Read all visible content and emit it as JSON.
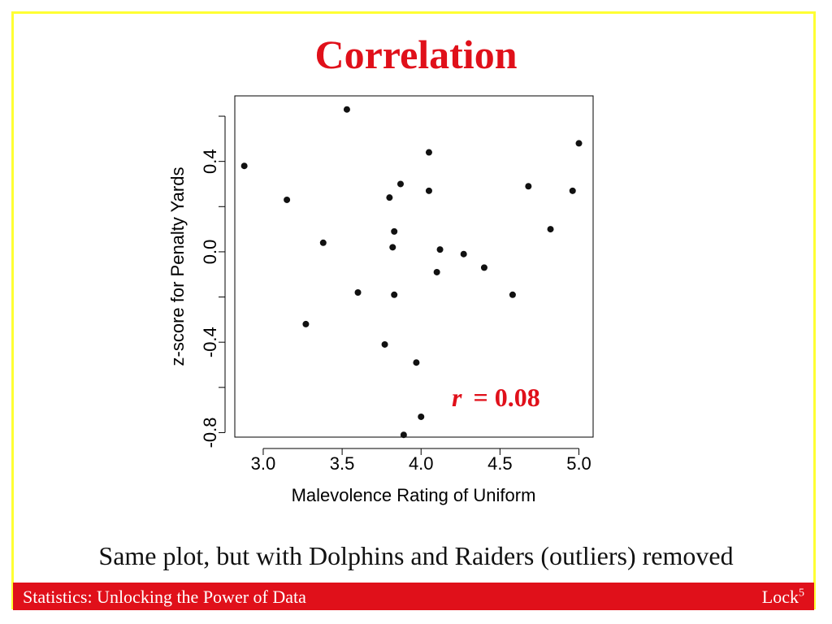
{
  "slide": {
    "title": "Correlation",
    "caption": "Same plot, but with Dolphins and Raiders (outliers) removed",
    "footer_left": "Statistics: Unlocking the Power of Data",
    "footer_right_base": "Lock",
    "footer_right_sup": "5"
  },
  "colors": {
    "title": "#e0101a",
    "footer_bg": "#e0101a",
    "frame": "#ffff33",
    "annotation": "#e0101a"
  },
  "chart_data": {
    "type": "scatter",
    "title": "",
    "xlabel": "Malevolence Rating of Uniform",
    "ylabel": "z-score for Penalty Yards",
    "xlim": [
      2.82,
      5.09
    ],
    "ylim": [
      -0.82,
      0.69
    ],
    "xticks": [
      3.0,
      3.5,
      4.0,
      4.5,
      5.0
    ],
    "xtick_labels": [
      "3.0",
      "3.5",
      "4.0",
      "4.5",
      "5.0"
    ],
    "yticks": [
      -0.8,
      -0.6,
      -0.4,
      -0.2,
      0.0,
      0.2,
      0.4,
      0.6
    ],
    "ytick_labels": [
      "-0.8",
      "",
      "-0.4",
      "",
      "0.0",
      "",
      "0.4",
      ""
    ],
    "annotation": {
      "symbol": "r",
      "text": " = 0.08"
    },
    "points": [
      {
        "x": 2.88,
        "y": 0.38
      },
      {
        "x": 3.15,
        "y": 0.23
      },
      {
        "x": 3.27,
        "y": -0.32
      },
      {
        "x": 3.38,
        "y": 0.04
      },
      {
        "x": 3.53,
        "y": 0.63
      },
      {
        "x": 3.6,
        "y": -0.18
      },
      {
        "x": 3.77,
        "y": -0.41
      },
      {
        "x": 3.8,
        "y": 0.24
      },
      {
        "x": 3.82,
        "y": 0.02
      },
      {
        "x": 3.83,
        "y": 0.09
      },
      {
        "x": 3.83,
        "y": -0.19
      },
      {
        "x": 3.87,
        "y": 0.3
      },
      {
        "x": 3.89,
        "y": -0.81
      },
      {
        "x": 3.97,
        "y": -0.49
      },
      {
        "x": 4.0,
        "y": -0.73
      },
      {
        "x": 4.05,
        "y": 0.44
      },
      {
        "x": 4.05,
        "y": 0.27
      },
      {
        "x": 4.1,
        "y": -0.09
      },
      {
        "x": 4.12,
        "y": 0.01
      },
      {
        "x": 4.27,
        "y": -0.01
      },
      {
        "x": 4.4,
        "y": -0.07
      },
      {
        "x": 4.58,
        "y": -0.19
      },
      {
        "x": 4.68,
        "y": 0.29
      },
      {
        "x": 4.82,
        "y": 0.1
      },
      {
        "x": 4.96,
        "y": 0.27
      },
      {
        "x": 5.0,
        "y": 0.48
      }
    ]
  }
}
